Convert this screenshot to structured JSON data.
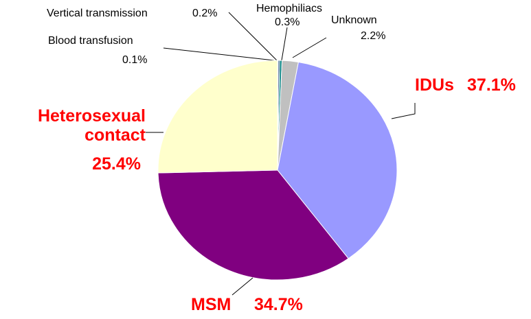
{
  "chart_data": {
    "type": "pie",
    "categories": [
      "Blood transfusion",
      "Vertical transmission",
      "Hemophiliacs",
      "Unknown",
      "IDUs",
      "MSM",
      "Heterosexual contact"
    ],
    "values": [
      0.1,
      0.2,
      0.3,
      2.2,
      37.1,
      34.7,
      25.4
    ],
    "value_labels": [
      "0.1%",
      "0.2%",
      "0.3%",
      "2.2%",
      "37.1%",
      "34.7%",
      "25.4%"
    ],
    "colors": [
      "#0000a0",
      "#003366",
      "#008080",
      "#c0c0c0",
      "#9999ff",
      "#800080",
      "#ffffcc"
    ]
  }
}
